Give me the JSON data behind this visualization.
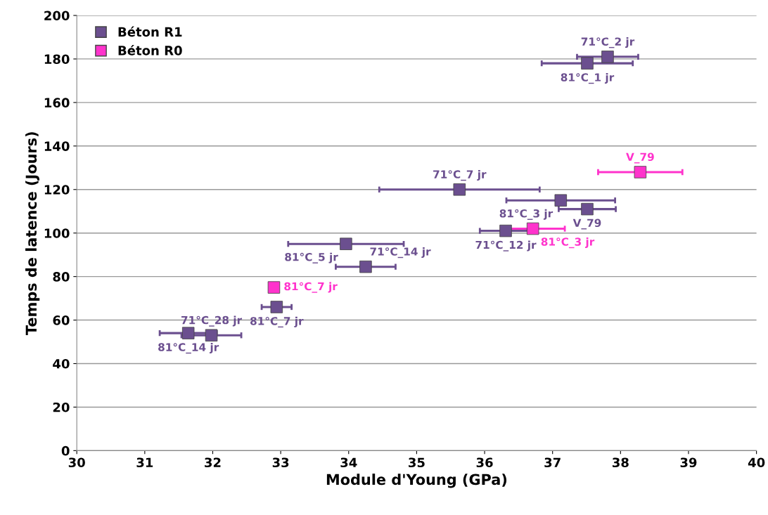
{
  "chart_data": {
    "type": "scatter",
    "xlabel": "Module d'Young (GPa)",
    "ylabel": "Temps de latence (Jours)",
    "xlim": [
      30,
      40
    ],
    "xticks": [
      30,
      31,
      32,
      33,
      34,
      35,
      36,
      37,
      38,
      39,
      40
    ],
    "ylim": [
      0,
      200
    ],
    "yticks": [
      0,
      20,
      40,
      60,
      80,
      100,
      120,
      140,
      160,
      180,
      200
    ],
    "grid": "y",
    "legend": "top left",
    "marker": "square",
    "series": [
      {
        "name": "Béton R1",
        "color": "#6b4f8f",
        "x": [
          37.51,
          37.81,
          35.63,
          37.12,
          37.51,
          36.31,
          33.96,
          34.25,
          32.94,
          31.64,
          31.98
        ],
        "values": [
          178,
          181,
          120,
          115,
          111,
          101,
          95,
          84.5,
          66,
          54,
          53
        ],
        "xerrors": [
          0.67,
          0.45,
          1.18,
          0.8,
          0.42,
          0.38,
          0.85,
          0.44,
          0.22,
          0.42,
          0.44
        ]
      },
      {
        "name": "Béton R0",
        "color": "#ff33cc",
        "x": [
          38.29,
          36.71,
          32.9
        ],
        "values": [
          128,
          102,
          75
        ],
        "xerrors": [
          0.62,
          0.47,
          null
        ]
      }
    ],
    "annotations": [
      {
        "text": "71°C_2 jr",
        "x": 37.81,
        "y": 181
      },
      {
        "text": "81°C_1 jr",
        "x": 37.51,
        "y": 178
      },
      {
        "text": "V_79",
        "x": 38.29,
        "y": 128
      },
      {
        "text": "71°C_7 jr",
        "x": 35.63,
        "y": 120
      },
      {
        "text": "81°C_3 jr",
        "x": 37.12,
        "y": 115
      },
      {
        "text": "V_79",
        "x": 37.51,
        "y": 111
      },
      {
        "text": "71°C_12 jr",
        "x": 36.31,
        "y": 101
      },
      {
        "text": "81°C_3 jr",
        "x": 36.71,
        "y": 102
      },
      {
        "text": "81°C_5 jr",
        "x": 33.96,
        "y": 95
      },
      {
        "text": "71°C_14 jr",
        "x": 34.25,
        "y": 84.5
      },
      {
        "text": "81°C_7 jr",
        "x": 32.9,
        "y": 75
      },
      {
        "text": "81°C_7 jr",
        "x": 32.94,
        "y": 66
      },
      {
        "text": "81°C_14 jr",
        "x": 31.64,
        "y": 54
      },
      {
        "text": "71°C_28 jr",
        "x": 31.98,
        "y": 53
      }
    ]
  }
}
